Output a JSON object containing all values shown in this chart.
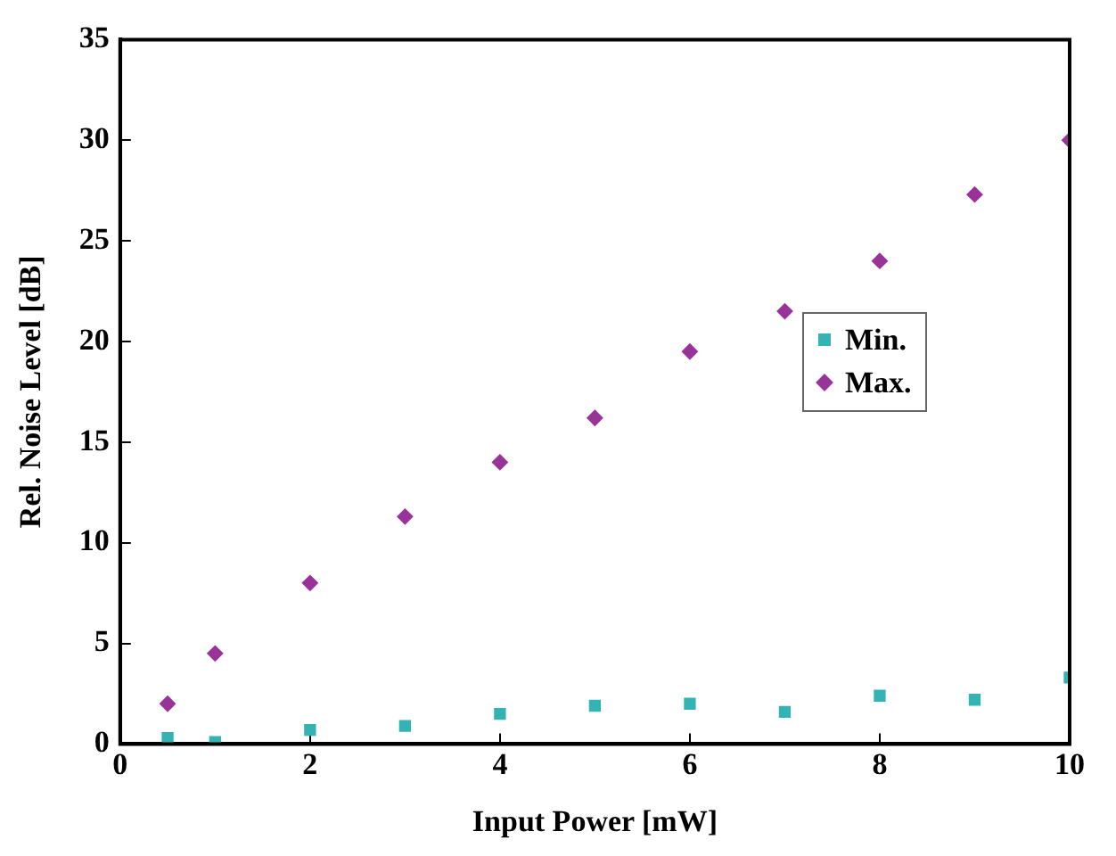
{
  "chart_data": {
    "type": "scatter",
    "xlabel": "Input Power [mW]",
    "ylabel": "Rel. Noise Level [dB]",
    "x": [
      0.5,
      1,
      2,
      3,
      4,
      5,
      6,
      7,
      8,
      9,
      10
    ],
    "series": [
      {
        "name": "Min.",
        "color": "#33b3b3",
        "marker": "square",
        "values": [
          0.3,
          0.1,
          0.7,
          0.9,
          1.5,
          1.9,
          2.0,
          1.6,
          2.4,
          2.2,
          3.3
        ]
      },
      {
        "name": "Max.",
        "color": "#993399",
        "marker": "diamond",
        "values": [
          2,
          4.5,
          8,
          11.3,
          14,
          16.2,
          19.5,
          21.5,
          24,
          27.3,
          30
        ]
      }
    ],
    "xlim": [
      0,
      10
    ],
    "xticks": [
      0,
      2,
      4,
      6,
      8,
      10
    ],
    "ylim": [
      0,
      35
    ],
    "yticks": [
      0,
      5,
      10,
      15,
      20,
      25,
      30,
      35
    ],
    "grid": false,
    "legend": "right"
  }
}
